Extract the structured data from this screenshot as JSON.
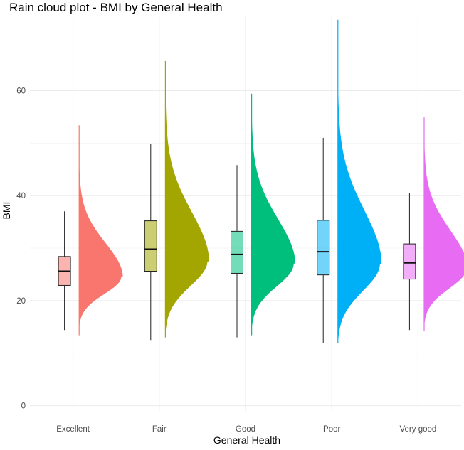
{
  "chart_data": {
    "type": "raincloud",
    "title": "Rain cloud plot - BMI by General Health",
    "xlabel": "General Health",
    "ylabel": "BMI",
    "ylim": [
      -1,
      74
    ],
    "yticks": [
      0,
      20,
      40,
      60
    ],
    "grid": true,
    "categories": [
      "Excellent",
      "Fair",
      "Good",
      "Poor",
      "Very good"
    ],
    "series": [
      {
        "category": "Excellent",
        "color": "#F8766D",
        "box": {
          "min": 14.4,
          "q1": 22.9,
          "median": 25.6,
          "q3": 28.4,
          "max": 37.0
        },
        "density": {
          "min": 13.4,
          "max": 53.4,
          "peak": 24.5,
          "spread": 3.8
        }
      },
      {
        "category": "Fair",
        "color": "#A3A500",
        "box": {
          "min": 12.5,
          "q1": 25.6,
          "median": 29.8,
          "q3": 35.2,
          "max": 49.8
        },
        "density": {
          "min": 13.0,
          "max": 65.6,
          "peak": 27.5,
          "spread": 5.5
        }
      },
      {
        "category": "Good",
        "color": "#00BF7D",
        "box": {
          "min": 13.0,
          "q1": 25.2,
          "median": 28.8,
          "q3": 33.2,
          "max": 45.8
        },
        "density": {
          "min": 13.4,
          "max": 59.4,
          "peak": 27.0,
          "spread": 5.0
        }
      },
      {
        "category": "Poor",
        "color": "#00B0F6",
        "box": {
          "min": 12.0,
          "q1": 24.9,
          "median": 29.3,
          "q3": 35.3,
          "max": 51.0
        },
        "density": {
          "min": 12.0,
          "max": 73.5,
          "peak": 27.0,
          "spread": 6.0
        }
      },
      {
        "category": "Very good",
        "color": "#E76BF3",
        "box": {
          "min": 14.4,
          "q1": 24.1,
          "median": 27.2,
          "q3": 30.8,
          "max": 40.5
        },
        "density": {
          "min": 14.2,
          "max": 54.9,
          "peak": 26.0,
          "spread": 4.3
        }
      }
    ]
  }
}
